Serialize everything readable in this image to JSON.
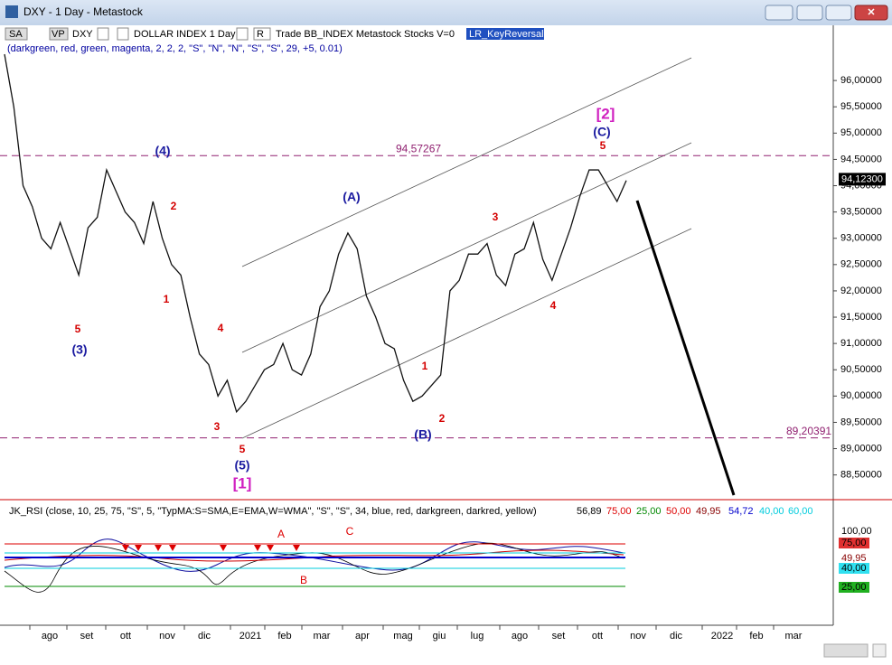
{
  "window": {
    "title": "DXY - 1 Day - Metastock"
  },
  "toolbar": {
    "sa": "SA",
    "vp": "VP",
    "symbol": "DXY",
    "name": "DOLLAR INDEX 1 Day",
    "r": "R",
    "info": "Trade BB_INDEX Metastock Stocks V=0",
    "expert": "LR_KeyReversal"
  },
  "params": "(darkgreen, red, green, magenta, 2, 2, 2, \"S\", \"N\", \"N\", \"S\", \"S\", 29, +5, 0.01)",
  "price_panel": {
    "ylim": [
      88.03,
      97.05
    ],
    "yticks": [
      {
        "value": 96,
        "label": "96,00000"
      },
      {
        "value": 95.5,
        "label": "95,50000"
      },
      {
        "value": 95,
        "label": "95,00000"
      },
      {
        "value": 94.5,
        "label": "94,50000"
      },
      {
        "value": 94,
        "label": "94,00000"
      },
      {
        "value": 93.5,
        "label": "93,50000"
      },
      {
        "value": 93,
        "label": "93,00000"
      },
      {
        "value": 92.5,
        "label": "92,50000"
      },
      {
        "value": 92,
        "label": "92,00000"
      },
      {
        "value": 91.5,
        "label": "91,50000"
      },
      {
        "value": 91,
        "label": "91,00000"
      },
      {
        "value": 90.5,
        "label": "90,50000"
      },
      {
        "value": 90,
        "label": "90,00000"
      },
      {
        "value": 89.5,
        "label": "89,50000"
      },
      {
        "value": 89,
        "label": "89,00000"
      },
      {
        "value": 88.5,
        "label": "88,50000"
      }
    ],
    "last": {
      "value": 94.123,
      "label": "94,12300"
    },
    "levels": [
      {
        "value": 94.57267,
        "label": "94,57267"
      },
      {
        "value": 89.20391,
        "label": "89,20391"
      }
    ],
    "closes": [
      96.5,
      95.5,
      94.0,
      93.6,
      93.0,
      92.8,
      93.3,
      92.8,
      92.3,
      93.2,
      93.4,
      94.3,
      93.9,
      93.5,
      93.3,
      92.9,
      93.7,
      93.0,
      92.5,
      92.3,
      91.5,
      90.8,
      90.6,
      90.0,
      90.3,
      89.7,
      89.9,
      90.2,
      90.5,
      90.6,
      91.0,
      90.5,
      90.4,
      90.8,
      91.7,
      92.0,
      92.7,
      93.1,
      92.8,
      91.9,
      91.5,
      91.0,
      90.9,
      90.3,
      89.9,
      90.0,
      90.2,
      90.4,
      92.0,
      92.2,
      92.7,
      92.7,
      92.9,
      92.3,
      92.1,
      92.7,
      92.8,
      93.3,
      92.6,
      92.2,
      92.7,
      93.2,
      93.8,
      94.3,
      94.3,
      94.0,
      93.7,
      94.1
    ]
  },
  "waves": [
    "(4)",
    "2",
    "1",
    "5",
    "(3)",
    "4",
    "3",
    "5",
    "(5)",
    "[1]",
    "(A)",
    "1",
    "2",
    "(B)",
    "3",
    "4",
    "5",
    "(C)",
    "[2]"
  ],
  "rsi_panel": {
    "header": "JK_RSI   (close, 10, 25, 75, \"S\", 5, \"TypMA:S=SMA,E=EMA,W=WMA\", \"S\", \"S\", 34, blue, red, darkgreen, darkred, yellow)",
    "readings": [
      "56,89",
      "75,00",
      "25,00",
      "50,00",
      "49,95",
      "54,72",
      "40,00",
      "60,00"
    ],
    "axis": [
      "100,00",
      "75,00",
      "49,95",
      "40,00",
      "25,00"
    ],
    "marks": [
      "A",
      "C",
      "B"
    ]
  },
  "months": [
    "ago",
    "set",
    "ott",
    "nov",
    "dic",
    "2021",
    "feb",
    "mar",
    "apr",
    "mag",
    "giu",
    "lug",
    "ago",
    "set",
    "ott",
    "nov",
    "dic",
    "2022",
    "feb",
    "mar"
  ]
}
